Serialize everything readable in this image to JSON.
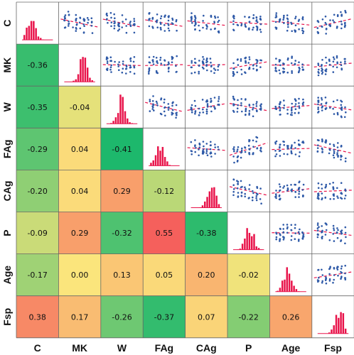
{
  "chart_data": {
    "type": "heatmap",
    "variables": [
      "C",
      "MK",
      "W",
      "FAg",
      "CAg",
      "P",
      "Age",
      "Fsp"
    ],
    "correlations": [
      [
        null,
        null,
        null,
        null,
        null,
        null,
        null,
        null
      ],
      [
        -0.36,
        null,
        null,
        null,
        null,
        null,
        null,
        null
      ],
      [
        -0.35,
        -0.04,
        null,
        null,
        null,
        null,
        null,
        null
      ],
      [
        -0.29,
        0.04,
        -0.41,
        null,
        null,
        null,
        null,
        null
      ],
      [
        -0.2,
        0.04,
        0.29,
        -0.12,
        null,
        null,
        null,
        null
      ],
      [
        -0.09,
        0.29,
        -0.32,
        0.55,
        -0.38,
        null,
        null,
        null
      ],
      [
        -0.17,
        0.0,
        0.13,
        0.05,
        0.2,
        -0.02,
        null,
        null
      ],
      [
        0.38,
        0.17,
        -0.26,
        -0.37,
        0.07,
        -0.22,
        0.26,
        null
      ]
    ],
    "correlation_labels": [
      [
        null,
        null,
        null,
        null,
        null,
        null,
        null,
        null
      ],
      [
        "-0.36",
        null,
        null,
        null,
        null,
        null,
        null,
        null
      ],
      [
        "-0.35",
        "-0.04",
        null,
        null,
        null,
        null,
        null,
        null
      ],
      [
        "-0.29",
        "0.04",
        "-0.41",
        null,
        null,
        null,
        null,
        null
      ],
      [
        "-0.20",
        "0.04",
        "0.29",
        "-0.12",
        null,
        null,
        null,
        null
      ],
      [
        "-0.09",
        "0.29",
        "-0.32",
        "0.55",
        "-0.38",
        null,
        null,
        null
      ],
      [
        "-0.17",
        "0.00",
        "0.13",
        "0.05",
        "0.20",
        "-0.02",
        null,
        null
      ],
      [
        "0.38",
        "0.17",
        "-0.26",
        "-0.37",
        "0.07",
        "-0.22",
        "0.26",
        null
      ]
    ],
    "color_scale": {
      "min": -0.41,
      "mid": 0.0,
      "max": 0.55,
      "low_color": "#1db86c",
      "mid_color": "#fbe57c",
      "high_color": "#f5605c"
    },
    "diagonal": "histogram",
    "upper_triangle": "scatter-with-fit",
    "histogram_color": "#e8134a",
    "point_color": "#2f5aa8",
    "fit_line_color": "#e8134a",
    "grid": false,
    "legend": "none"
  }
}
